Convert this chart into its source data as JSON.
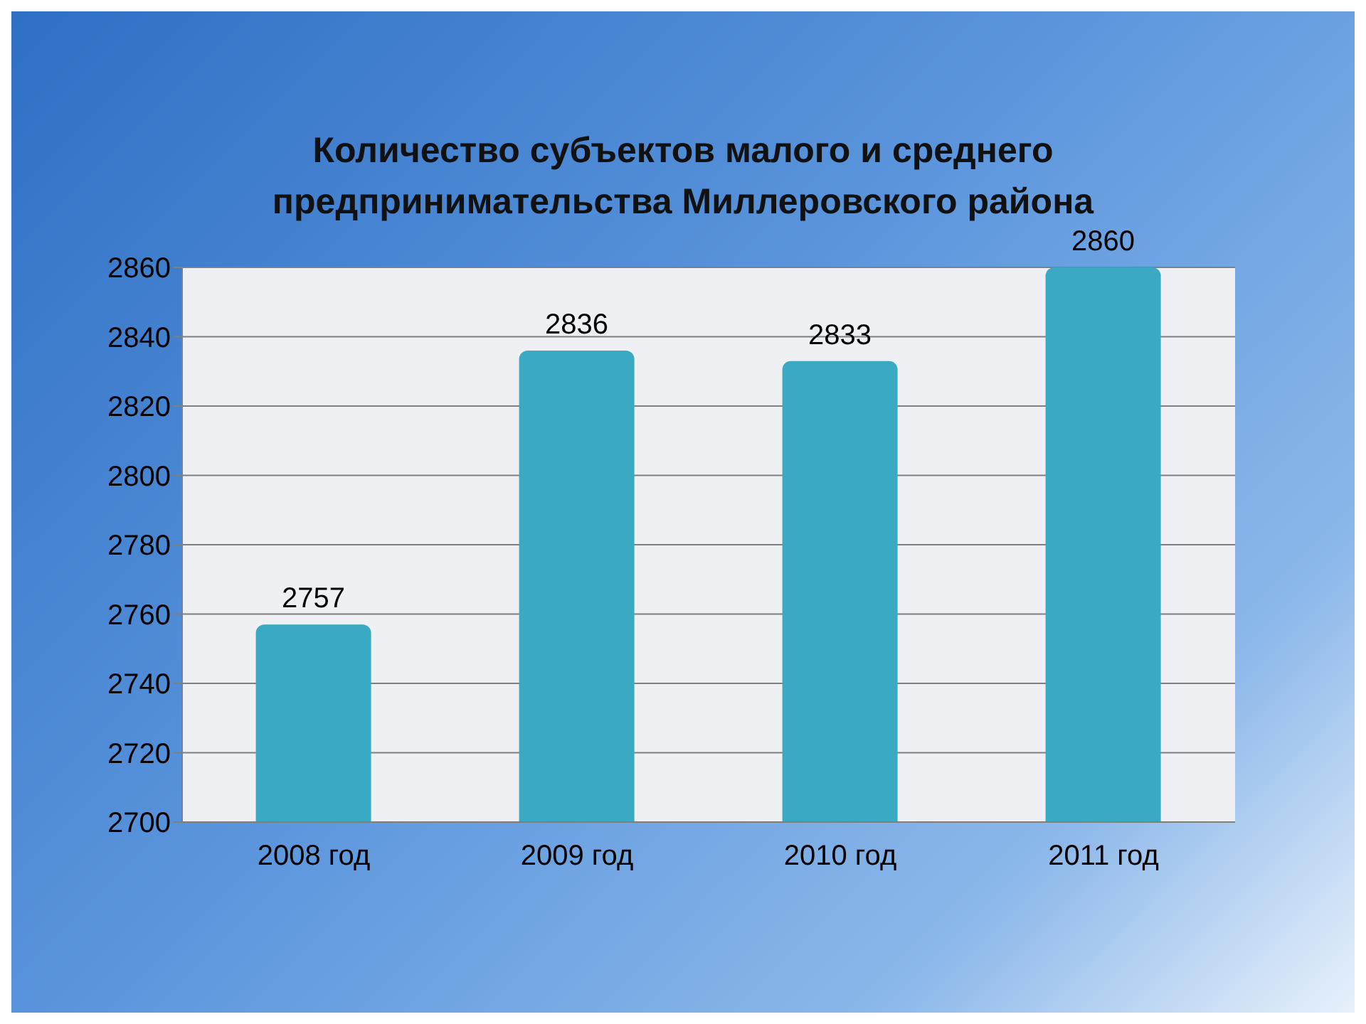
{
  "chart_data": {
    "type": "bar",
    "title": "Количество субъектов малого и среднего предпринимательства Миллеровского района",
    "categories": [
      "2008 год",
      "2009 год",
      "2010 год",
      "2011 год"
    ],
    "values": [
      2757,
      2836,
      2833,
      2860
    ],
    "color": "#3aa9c2",
    "ylim": [
      2700,
      2860
    ],
    "yticks": [
      2700,
      2720,
      2740,
      2760,
      2780,
      2800,
      2820,
      2840,
      2860
    ],
    "grid": "y",
    "data_labels": true
  }
}
